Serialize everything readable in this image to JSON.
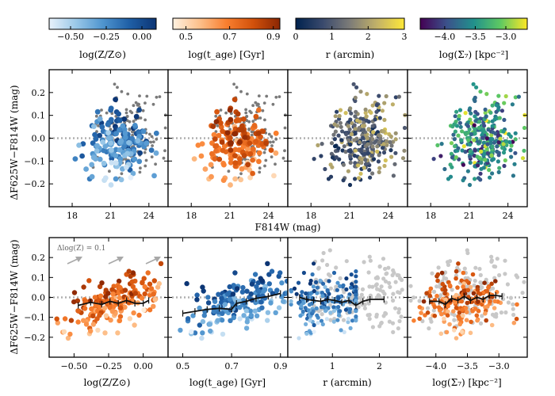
{
  "colors": {
    "metal": [
      "#e8f1fb",
      "#9ac8e8",
      "#4f95cf",
      "#1f5fa6",
      "#0c3574"
    ],
    "age": [
      "#fff1e0",
      "#fdc08b",
      "#f97f2f",
      "#d2510b",
      "#8a2603"
    ],
    "radius": [
      "#00224e",
      "#3a4a6d",
      "#7d7c78",
      "#c3b268",
      "#fee838"
    ],
    "density": [
      "#440154",
      "#3b528b",
      "#21918c",
      "#5ec962",
      "#fde725"
    ],
    "grey": "#7a7a7a",
    "light_grey": "#c8c8c8",
    "median": "#111111"
  },
  "colorbars": [
    {
      "key": "metal",
      "label": "log(Z/Z⊙)",
      "range": [
        -0.65,
        0.1
      ],
      "ticks": [
        {
          "v": -0.5,
          "t": "−0.50"
        },
        {
          "v": -0.25,
          "t": "−0.25"
        },
        {
          "v": 0.0,
          "t": "0.00"
        }
      ]
    },
    {
      "key": "age",
      "label": "log(t_age) [Gyr]",
      "range": [
        0.44,
        0.93
      ],
      "ticks": [
        {
          "v": 0.5,
          "t": "0.5"
        },
        {
          "v": 0.7,
          "t": "0.7"
        },
        {
          "v": 0.9,
          "t": "0.9"
        }
      ]
    },
    {
      "key": "radius",
      "label": "r (arcmin)",
      "range": [
        0,
        3
      ],
      "ticks": [
        {
          "v": 0,
          "t": "0"
        },
        {
          "v": 1,
          "t": "1"
        },
        {
          "v": 2,
          "t": "2"
        },
        {
          "v": 3,
          "t": "3"
        }
      ]
    },
    {
      "key": "density",
      "label": "log(Σ₇) [kpc⁻²]",
      "range": [
        -4.4,
        -2.65
      ],
      "ticks": [
        {
          "v": -4.0,
          "t": "−4.0"
        },
        {
          "v": -3.5,
          "t": "−3.5"
        },
        {
          "v": -3.0,
          "t": "−3.0"
        }
      ]
    }
  ],
  "top_row": {
    "ylabel": "ΔF625W−F814W (mag)",
    "xlabel": "F814W (mag)",
    "xlim": [
      16.2,
      25.5
    ],
    "xticks": [
      {
        "v": 18,
        "t": "18"
      },
      {
        "v": 21,
        "t": "21"
      },
      {
        "v": 24,
        "t": "24"
      }
    ]
  },
  "bottom_row": {
    "ylabel": "ΔF625W−F814W (mag)",
    "panels": [
      {
        "key": "metal",
        "xlabel": "log(Z/Z⊙)",
        "xlim": [
          -0.68,
          0.18
        ],
        "xticks": [
          {
            "v": -0.5,
            "t": "−0.50"
          },
          {
            "v": -0.25,
            "t": "−0.25"
          },
          {
            "v": 0.0,
            "t": "0.00"
          }
        ],
        "annotation": "Δlog(Z) = 0.1"
      },
      {
        "key": "age",
        "xlabel": "log(t_age) [Gyr]",
        "xlim": [
          0.44,
          0.93
        ],
        "xticks": [
          {
            "v": 0.5,
            "t": "0.5"
          },
          {
            "v": 0.7,
            "t": "0.7"
          },
          {
            "v": 0.9,
            "t": "0.9"
          }
        ]
      },
      {
        "key": "radius",
        "xlabel": "r (arcmin)",
        "xlim": [
          0.05,
          2.6
        ],
        "xticks": [
          {
            "v": 1,
            "t": "1"
          },
          {
            "v": 2,
            "t": "2"
          }
        ]
      },
      {
        "key": "density",
        "xlabel": "log(Σ₇) [kpc⁻²]",
        "xlim": [
          -4.45,
          -2.55
        ],
        "xticks": [
          {
            "v": -4.0,
            "t": "−4.0"
          },
          {
            "v": -3.5,
            "t": "−3.5"
          },
          {
            "v": -3.0,
            "t": "−3.0"
          }
        ]
      }
    ]
  },
  "chart_data": {
    "type": "scatter",
    "title": "",
    "ylim": [
      -0.3,
      0.3
    ],
    "yticks": [
      {
        "v": -0.2,
        "t": "−0.2"
      },
      {
        "v": -0.1,
        "t": "−0.1"
      },
      {
        "v": 0.0,
        "t": "0.0"
      },
      {
        "v": 0.1,
        "t": "0.1"
      },
      {
        "v": 0.2,
        "t": "0.2"
      }
    ],
    "reference_line_y": 0.0,
    "median_trends": {
      "metal": {
        "x": [
          -0.47,
          -0.38,
          -0.3,
          -0.24,
          -0.18,
          -0.12,
          -0.06,
          0.0,
          0.04
        ],
        "y": [
          -0.04,
          -0.025,
          -0.035,
          -0.02,
          -0.03,
          -0.015,
          -0.03,
          -0.03,
          -0.015
        ]
      },
      "age": {
        "x": [
          0.5,
          0.55,
          0.6,
          0.65,
          0.7,
          0.72,
          0.76,
          0.8,
          0.85,
          0.9
        ],
        "y": [
          -0.08,
          -0.07,
          -0.06,
          -0.055,
          -0.06,
          -0.03,
          -0.02,
          -0.005,
          0.005,
          0.02
        ]
      },
      "radius": {
        "x": [
          0.3,
          0.45,
          0.6,
          0.75,
          0.9,
          1.05,
          1.2,
          1.35,
          1.5,
          1.65,
          1.8,
          2.1
        ],
        "y": [
          0.0,
          -0.01,
          -0.015,
          -0.02,
          -0.01,
          -0.015,
          -0.025,
          -0.015,
          -0.04,
          -0.02,
          -0.01,
          -0.01
        ]
      },
      "density": {
        "x": [
          -4.1,
          -3.95,
          -3.85,
          -3.75,
          -3.65,
          -3.55,
          -3.45,
          -3.35,
          -3.25,
          -3.15,
          -3.05,
          -2.95
        ],
        "y": [
          -0.02,
          -0.02,
          -0.035,
          -0.005,
          -0.015,
          0.005,
          -0.015,
          0.0,
          -0.01,
          0.01,
          0.01,
          0.005
        ]
      }
    },
    "scatter_model": {
      "n_coloured": 180,
      "n_grey": 140,
      "seed": 11,
      "mag_mean": 21.5,
      "mag_sd": 1.2,
      "grey_mag_mean": 22.5,
      "metal_mean": -0.22,
      "metal_sd": 0.17,
      "age_mean": 0.72,
      "age_sd": 0.11,
      "colour_metal_slope": 0.22,
      "colour_age_slope": 0.38,
      "scatter_sd": 0.045,
      "radius_max": 2.2,
      "density_mean": -3.55,
      "density_sd": 0.33
    }
  }
}
